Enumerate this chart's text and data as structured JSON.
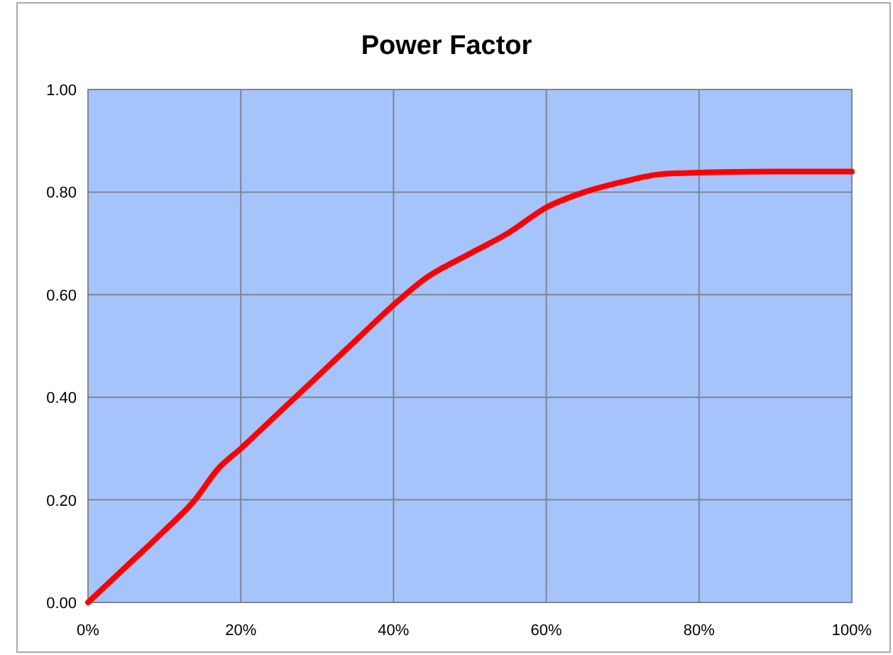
{
  "chart_data": {
    "type": "line",
    "title": "Power Factor",
    "x": [
      0,
      5,
      10,
      14,
      17,
      20,
      25,
      30,
      35,
      40,
      44,
      50,
      55,
      60,
      65,
      70,
      75,
      80,
      90,
      100
    ],
    "series": [
      {
        "color": "#ff0000",
        "values": [
          0,
          0.07,
          0.14,
          0.2,
          0.26,
          0.3,
          0.37,
          0.44,
          0.51,
          0.58,
          0.63,
          0.68,
          0.72,
          0.77,
          0.8,
          0.82,
          0.835,
          0.838,
          0.84,
          0.84
        ]
      }
    ],
    "xlim": [
      0,
      100
    ],
    "xticks": [
      {
        "value": 0,
        "label": "0%"
      },
      {
        "value": 20,
        "label": "20%"
      },
      {
        "value": 40,
        "label": "40%"
      },
      {
        "value": 60,
        "label": "60%"
      },
      {
        "value": 80,
        "label": "80%"
      },
      {
        "value": 100,
        "label": "100%"
      }
    ],
    "ylim": [
      0,
      1
    ],
    "yticks": [
      {
        "value": 0,
        "label": "0.00"
      },
      {
        "value": 0.2,
        "label": "0.20"
      },
      {
        "value": 0.4,
        "label": "0.40"
      },
      {
        "value": 0.6,
        "label": "0.60"
      },
      {
        "value": 0.8,
        "label": "0.80"
      },
      {
        "value": 1,
        "label": "1.00"
      }
    ],
    "grid": true,
    "marker": "none",
    "line_style": "solid"
  }
}
